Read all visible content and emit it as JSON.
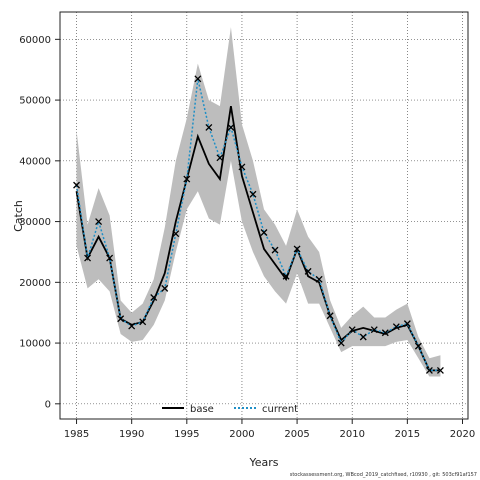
{
  "chart_data": {
    "type": "line",
    "xlabel": "Years",
    "ylabel": "Catch",
    "xlim": [
      1983.5,
      2020.5
    ],
    "ylim": [
      -2500,
      64500
    ],
    "xticks": [
      1985,
      1990,
      1995,
      2000,
      2005,
      2010,
      2015,
      2020
    ],
    "yticks": [
      0,
      10000,
      20000,
      30000,
      40000,
      50000,
      60000
    ],
    "grid": "dotted",
    "legend_position": "bottom-center",
    "x": [
      1985,
      1986,
      1987,
      1988,
      1989,
      1990,
      1991,
      1992,
      1993,
      1994,
      1995,
      1996,
      1997,
      1998,
      1999,
      2000,
      2001,
      2002,
      2003,
      2004,
      2005,
      2006,
      2007,
      2008,
      2009,
      2010,
      2011,
      2012,
      2013,
      2014,
      2015,
      2016,
      2017,
      2018
    ],
    "band": {
      "lower": [
        26000,
        19000,
        20500,
        18500,
        11500,
        10200,
        10500,
        13000,
        17000,
        25000,
        32000,
        35000,
        30500,
        29500,
        40000,
        30000,
        25000,
        21000,
        18500,
        16500,
        21500,
        16500,
        16500,
        12500,
        8500,
        9500,
        9500,
        9500,
        9500,
        10200,
        10500,
        7500,
        4500,
        4500
      ],
      "upper": [
        45000,
        29500,
        35500,
        31000,
        17000,
        15000,
        16500,
        20500,
        29000,
        40000,
        47000,
        56000,
        50000,
        49000,
        62000,
        46000,
        40000,
        32000,
        29500,
        26000,
        32000,
        27500,
        25000,
        17000,
        12500,
        14500,
        16000,
        14200,
        14200,
        15500,
        16500,
        11000,
        7500,
        8000
      ]
    },
    "series": [
      {
        "name": "base",
        "color": "#000000",
        "style": "solid",
        "values": [
          35000,
          24000,
          27500,
          24000,
          14000,
          13000,
          13500,
          17000,
          21500,
          30000,
          37000,
          44000,
          39500,
          37000,
          49000,
          37500,
          31500,
          25500,
          23000,
          20500,
          25500,
          21000,
          20000,
          14500,
          10500,
          12000,
          12500,
          12000,
          11500,
          12500,
          13000,
          9500,
          5500,
          5500
        ]
      },
      {
        "name": "current",
        "color": "#1f8fc6",
        "style": "dotted",
        "marker": "x",
        "values": [
          36000,
          24000,
          30000,
          24000,
          14000,
          12800,
          13500,
          17500,
          19000,
          28000,
          37000,
          53500,
          45500,
          40500,
          45500,
          39000,
          34500,
          28200,
          25300,
          21000,
          25500,
          21800,
          20500,
          14500,
          10000,
          12200,
          11000,
          12200,
          11700,
          12700,
          13200,
          9500,
          5500,
          5500
        ]
      }
    ]
  },
  "footnote": "stockassessment.org, WBcod_2019_catchfixed, r10930 , git: 503cf91af157"
}
